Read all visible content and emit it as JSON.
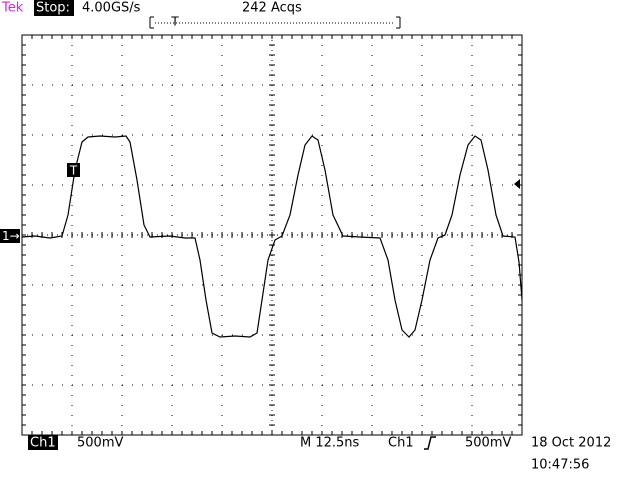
{
  "header": {
    "brand": "Tek",
    "status": "Stop:",
    "sample_rate": "4.00GS/s",
    "acquisitions": "242 Acqs",
    "record_marker": "T"
  },
  "markers": {
    "trace_trigger": "T",
    "ground": "1→"
  },
  "footer": {
    "channel": "Ch1",
    "volts_per_div": "500mV",
    "timebase": "M 12.5ns",
    "trigger_source": "Ch1",
    "trigger_level": "500mV",
    "date": "18 Oct 2012",
    "time": "10:47:56"
  }
}
